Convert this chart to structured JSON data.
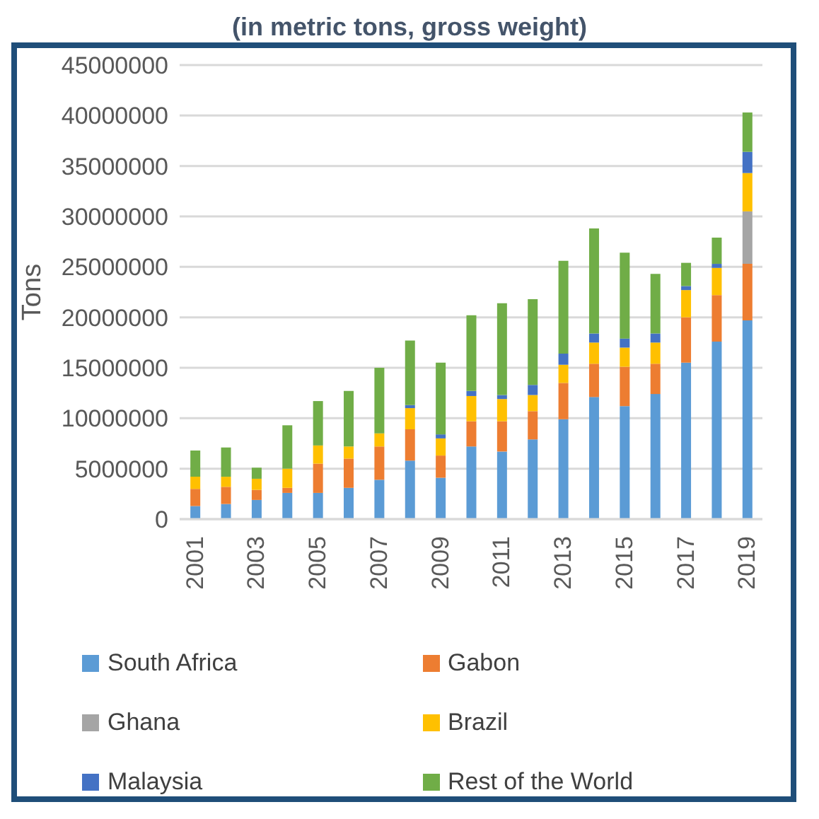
{
  "chart_data": {
    "type": "bar",
    "title": "(in metric tons, gross weight)",
    "ylabel": "Tons",
    "stacked": true,
    "categories": [
      "2001",
      null,
      "2003",
      null,
      "2005",
      null,
      "2007",
      null,
      "2009",
      null,
      "2011",
      null,
      "2013",
      null,
      "2015",
      null,
      "2017",
      null,
      "2019"
    ],
    "series": [
      {
        "name": "South Africa",
        "color": "#5b9bd5",
        "values": [
          1300000,
          1500000,
          1900000,
          2600000,
          2600000,
          3100000,
          3900000,
          5800000,
          4100000,
          7200000,
          6700000,
          7900000,
          9900000,
          12100000,
          11200000,
          12400000,
          15500000,
          17600000,
          19700000
        ]
      },
      {
        "name": "Gabon",
        "color": "#ed7d31",
        "values": [
          1700000,
          1700000,
          1000000,
          500000,
          2900000,
          2900000,
          3300000,
          3100000,
          2200000,
          2500000,
          3000000,
          2800000,
          3600000,
          3300000,
          3900000,
          3000000,
          4500000,
          4600000,
          5600000
        ]
      },
      {
        "name": "Ghana",
        "color": "#a5a5a5",
        "values": [
          0,
          0,
          0,
          0,
          0,
          0,
          0,
          0,
          0,
          0,
          0,
          0,
          0,
          0,
          0,
          0,
          0,
          0,
          5200000
        ]
      },
      {
        "name": "Brazil",
        "color": "#ffc000",
        "values": [
          1200000,
          1000000,
          1100000,
          1900000,
          1800000,
          1200000,
          1300000,
          2100000,
          1700000,
          2500000,
          2200000,
          1600000,
          1800000,
          2100000,
          1900000,
          2100000,
          2700000,
          2700000,
          3800000
        ]
      },
      {
        "name": "Malaysia",
        "color": "#4472c4",
        "values": [
          0,
          0,
          0,
          0,
          0,
          0,
          0,
          300000,
          400000,
          500000,
          400000,
          1000000,
          1100000,
          900000,
          900000,
          900000,
          400000,
          400000,
          2100000
        ]
      },
      {
        "name": "Rest of the World",
        "color": "#70ad47",
        "values": [
          2600000,
          2900000,
          1100000,
          4300000,
          4400000,
          5500000,
          6500000,
          6400000,
          7100000,
          7500000,
          9100000,
          8500000,
          9200000,
          10400000,
          8500000,
          5900000,
          2300000,
          2600000,
          3900000
        ]
      }
    ],
    "ylim": [
      0,
      45000000
    ],
    "yticks": [
      0,
      5000000,
      10000000,
      15000000,
      20000000,
      25000000,
      30000000,
      35000000,
      40000000,
      45000000
    ],
    "grid": "y",
    "legend": "bottom"
  }
}
